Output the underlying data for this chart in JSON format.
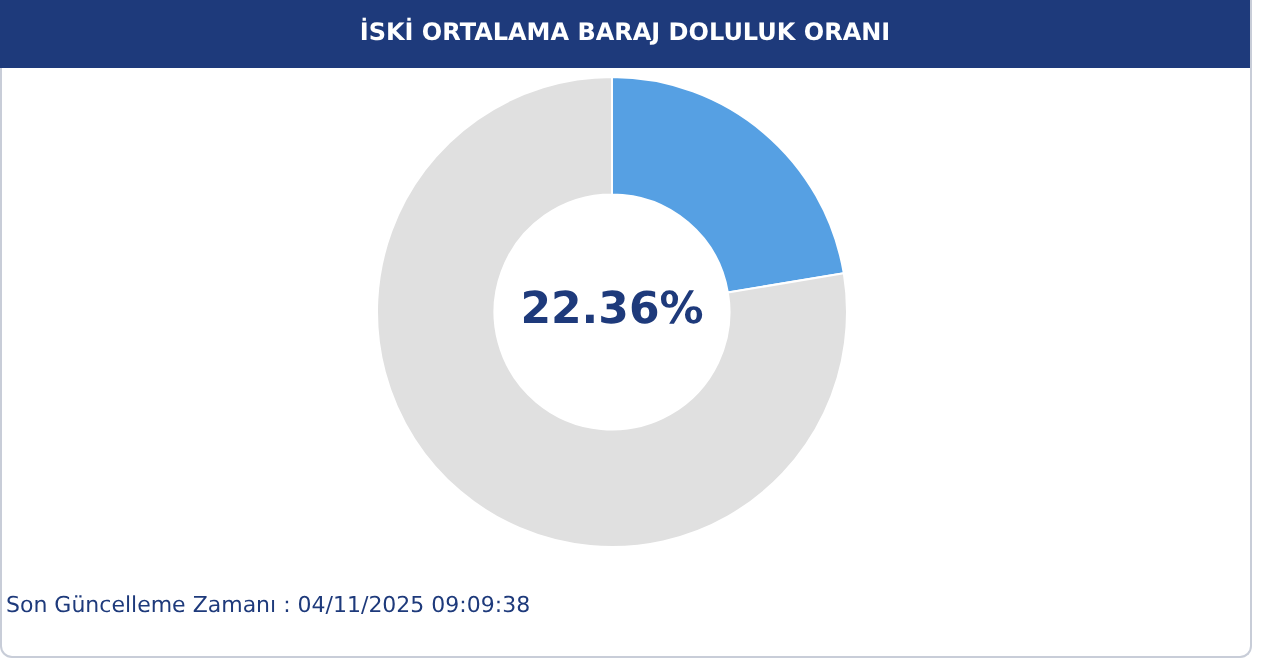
{
  "chart_data": {
    "type": "donut",
    "title": "İSKİ ORTALAMA BARAJ DOLULUK ORANI",
    "categories": [
      null,
      null
    ],
    "values": [
      22.36,
      77.64
    ],
    "colors": [
      "#56a0e3",
      "#e0e0e0"
    ],
    "value_labels": [
      "22.36%",
      null
    ],
    "legend": false,
    "annotations": [
      "Son Güncelleme Zamanı : 04/11/2025 09:09:38"
    ]
  }
}
